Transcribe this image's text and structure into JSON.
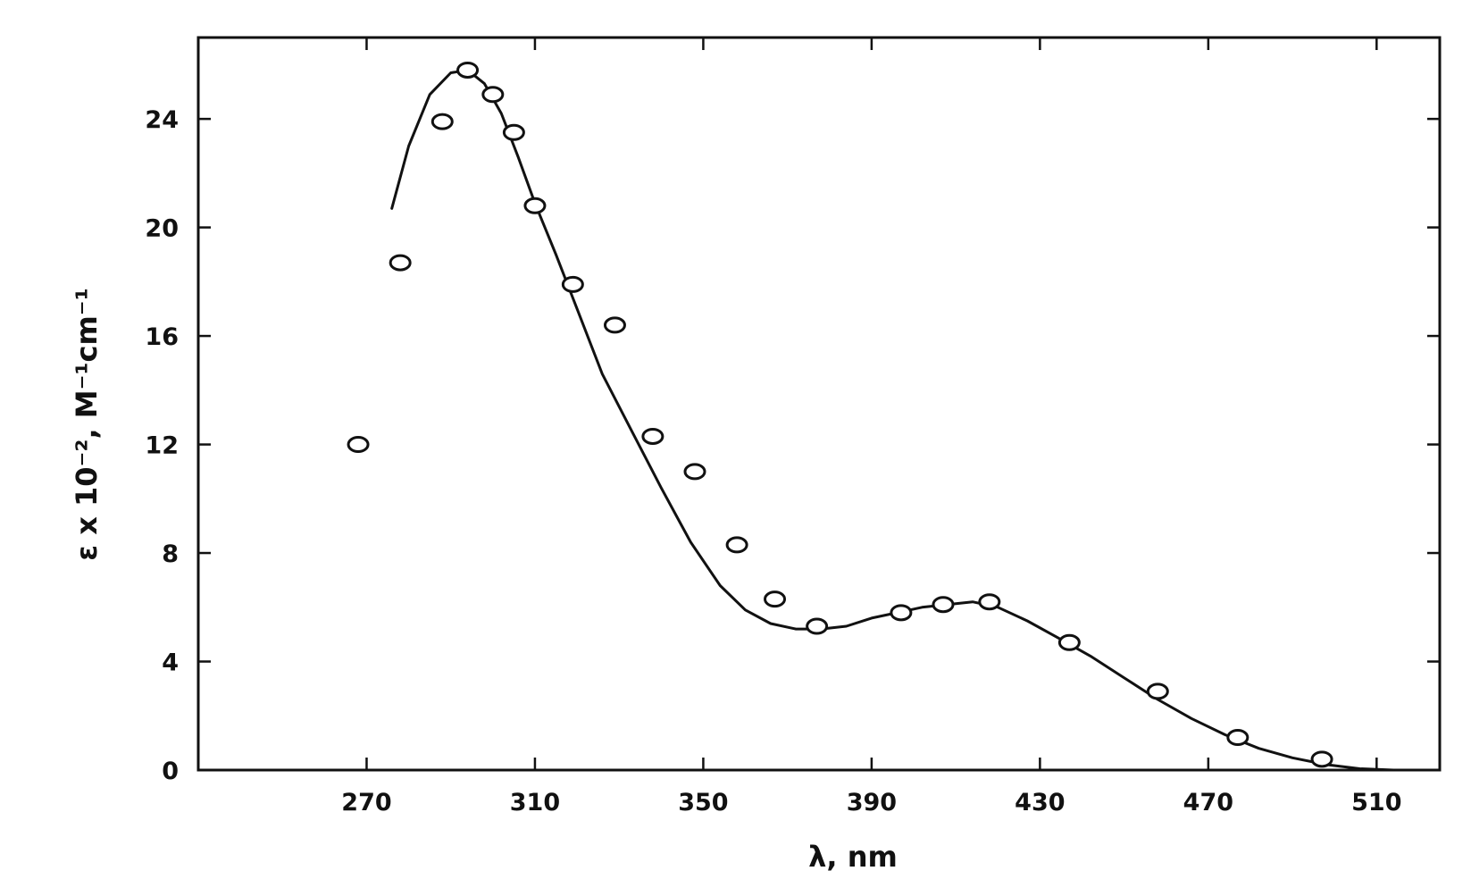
{
  "chart_data": {
    "type": "scatter",
    "title": "",
    "xlabel": "λ, nm",
    "ylabel": "ε x 10⁻², M⁻¹cm⁻¹",
    "xlim": [
      230,
      525
    ],
    "ylim": [
      0,
      27
    ],
    "x_ticks": [
      270,
      310,
      350,
      390,
      430,
      470,
      510
    ],
    "y_ticks": [
      0,
      4,
      8,
      12,
      16,
      20,
      24
    ],
    "x_tick_labels": [
      "270",
      "310",
      "350",
      "390",
      "430",
      "470",
      "510"
    ],
    "y_tick_labels": [
      "0",
      "4",
      "8",
      "12",
      "16",
      "20",
      "24"
    ],
    "grid": false,
    "series": [
      {
        "kind": "points",
        "x": [
          268,
          278,
          288,
          294,
          300,
          305,
          310,
          319,
          338,
          329,
          348,
          358,
          367,
          377,
          397,
          407,
          418,
          437,
          458,
          477,
          497
        ],
        "y": [
          12.0,
          18.7,
          23.9,
          25.8,
          24.9,
          23.5,
          20.8,
          17.9,
          12.3,
          16.4,
          11.0,
          8.3,
          6.3,
          5.3,
          5.8,
          6.1,
          6.2,
          4.7,
          2.9,
          1.2,
          0.4
        ]
      },
      {
        "kind": "line",
        "x": [
          276,
          280,
          285,
          290,
          294,
          298,
          302,
          306,
          310,
          315,
          320,
          326,
          333,
          340,
          347,
          354,
          360,
          366,
          372,
          378,
          384,
          390,
          396,
          402,
          408,
          414,
          420,
          427,
          434,
          442,
          450,
          458,
          466,
          474,
          482,
          490,
          498,
          506,
          514
        ],
        "y": [
          20.7,
          23.0,
          24.9,
          25.7,
          25.8,
          25.3,
          24.2,
          22.6,
          20.9,
          19.0,
          17.0,
          14.6,
          12.5,
          10.4,
          8.4,
          6.8,
          5.9,
          5.4,
          5.2,
          5.2,
          5.3,
          5.6,
          5.8,
          6.0,
          6.1,
          6.2,
          6.0,
          5.5,
          4.9,
          4.2,
          3.4,
          2.6,
          1.9,
          1.3,
          0.8,
          0.45,
          0.2,
          0.05,
          0.0
        ]
      }
    ]
  }
}
